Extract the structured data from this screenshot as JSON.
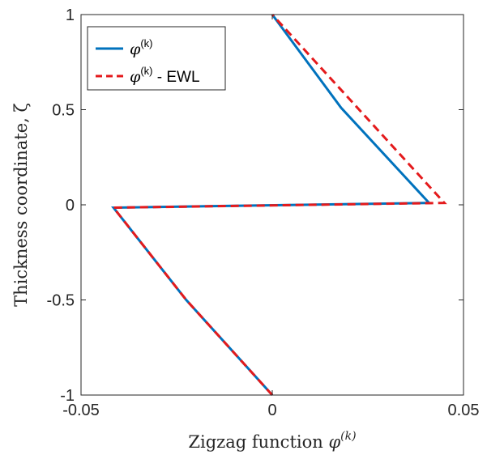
{
  "chart_data": {
    "type": "line",
    "xlabel": {
      "text": "Zigzag function ",
      "symbol": "φ",
      "sup": "(k)"
    },
    "ylabel": "Thickness coordinate, ζ",
    "xlim": [
      -0.05,
      0.05
    ],
    "ylim": [
      -1,
      1
    ],
    "x_ticks": [
      -0.05,
      0,
      0.05
    ],
    "x_tick_labels": [
      "-0.05",
      "0",
      "0.05"
    ],
    "y_ticks": [
      -1,
      -0.5,
      0,
      0.5,
      1
    ],
    "y_tick_labels": [
      "-1",
      "-0.5",
      "0",
      "0.5",
      "1"
    ],
    "grid": false,
    "legend_position": "top-left",
    "series": [
      {
        "name": "φ(k)",
        "legend": {
          "symbol": "φ",
          "sup": "(k)",
          "suffix": ""
        },
        "color": "#0072BD",
        "dash": "solid",
        "x": [
          0,
          -0.0225,
          -0.0415,
          0.041,
          0.018,
          0
        ],
        "y": [
          -1,
          -0.5,
          -0.015,
          0.01,
          0.51,
          1
        ]
      },
      {
        "name": "φ(k) - EWL",
        "legend": {
          "symbol": "φ",
          "sup": "(k)",
          "suffix": " - EWL"
        },
        "color": "#E41A1C",
        "dash": "dashed",
        "x": [
          0,
          -0.0225,
          -0.0415,
          0.045,
          0
        ],
        "y": [
          -1,
          -0.5,
          -0.015,
          0.01,
          1
        ]
      }
    ]
  }
}
